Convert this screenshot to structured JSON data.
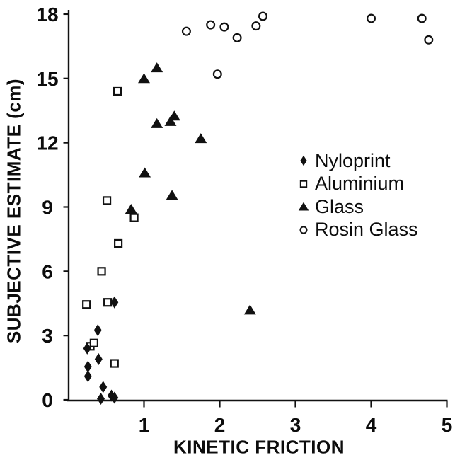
{
  "figure": {
    "background": "#ffffff",
    "ink": "#111111"
  },
  "chart_data": {
    "type": "scatter",
    "title": "",
    "xlabel": "KINETIC FRICTION",
    "ylabel": "SUBJECTIVE ESTIMATE (cm)",
    "xlim": [
      0,
      5
    ],
    "ylim": [
      0,
      18
    ],
    "xticks": [
      1,
      2,
      3,
      4,
      5
    ],
    "yticks": [
      0,
      3,
      6,
      9,
      12,
      15,
      18
    ],
    "grid": false,
    "legend_position": "center-right",
    "series": [
      {
        "name": "Nyloprint",
        "marker": "filled-diamond",
        "points": [
          [
            0.61,
            4.55
          ],
          [
            0.39,
            3.25
          ],
          [
            0.25,
            2.4
          ],
          [
            0.4,
            1.9
          ],
          [
            0.26,
            1.55
          ],
          [
            0.26,
            1.1
          ],
          [
            0.46,
            0.6
          ],
          [
            0.43,
            0.05
          ],
          [
            0.57,
            0.2
          ],
          [
            0.61,
            0.1
          ]
        ]
      },
      {
        "name": "Aluminium",
        "marker": "open-square",
        "points": [
          [
            0.65,
            14.4
          ],
          [
            0.51,
            9.3
          ],
          [
            0.87,
            8.5
          ],
          [
            0.66,
            7.3
          ],
          [
            0.44,
            6.0
          ],
          [
            0.24,
            4.45
          ],
          [
            0.52,
            4.55
          ],
          [
            0.29,
            2.5
          ],
          [
            0.34,
            2.65
          ],
          [
            0.61,
            1.7
          ]
        ]
      },
      {
        "name": "Glass",
        "marker": "filled-triangle",
        "points": [
          [
            1.17,
            15.5
          ],
          [
            1.0,
            15.0
          ],
          [
            1.4,
            13.25
          ],
          [
            1.35,
            13.0
          ],
          [
            1.17,
            12.9
          ],
          [
            1.75,
            12.2
          ],
          [
            1.01,
            10.6
          ],
          [
            1.37,
            9.55
          ],
          [
            0.83,
            8.9
          ],
          [
            2.4,
            4.2
          ]
        ]
      },
      {
        "name": "Rosin Glass",
        "marker": "open-circle",
        "points": [
          [
            1.56,
            17.2
          ],
          [
            1.88,
            17.5
          ],
          [
            2.06,
            17.4
          ],
          [
            2.23,
            16.9
          ],
          [
            2.48,
            17.45
          ],
          [
            2.57,
            17.9
          ],
          [
            1.97,
            15.2
          ],
          [
            4.0,
            17.8
          ],
          [
            4.67,
            17.8
          ],
          [
            4.76,
            16.8
          ]
        ]
      }
    ]
  }
}
